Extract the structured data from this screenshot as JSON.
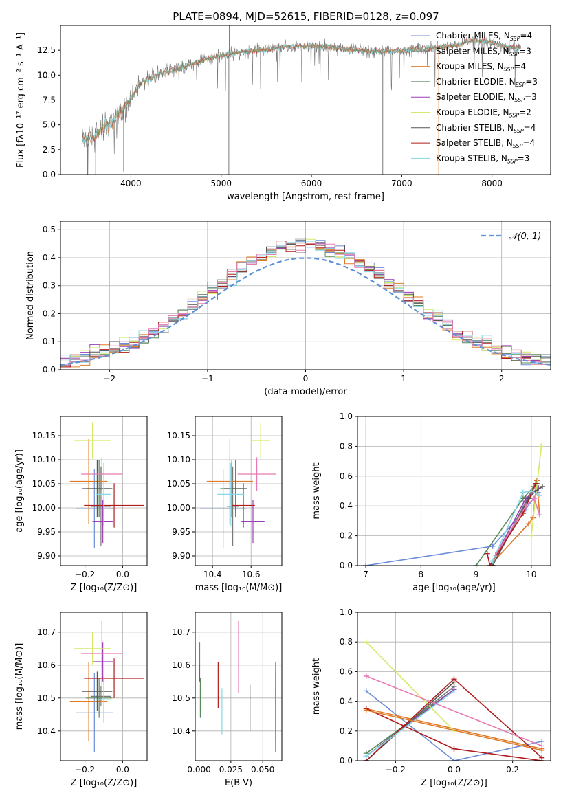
{
  "figure_title": "PLATE=0894, MJD=52615, FIBERID=0128, z=0.097",
  "colors": {
    "chabrier_miles": "#6b8cd8",
    "salpeter_miles": "#7a7a7a",
    "kroupa_miles": "#e07b27",
    "chabrier_elodie": "#5a8a5a",
    "salpeter_elodie": "#9b3fb6",
    "kroupa_elodie": "#d4e96a",
    "chabrier_stelib": "#555555",
    "salpeter_stelib": "#b01c1c",
    "kroupa_stelib": "#86d9e6",
    "pink": "#e57bb2",
    "normal": "#5b8fd6"
  },
  "chart_data": [
    {
      "id": "spectrum",
      "type": "line",
      "xlabel": "wavelength [Angstrom, rest frame]",
      "ylabel": "Flux [fλ10⁻¹⁷ erg cm⁻² s⁻¹ A⁻¹]",
      "xlim": [
        3220,
        8650
      ],
      "ylim": [
        0,
        15
      ],
      "xticks": [
        4000,
        5000,
        6000,
        7000,
        8000
      ],
      "yticks": [
        "0.0",
        "2.5",
        "5.0",
        "7.5",
        "10.0",
        "12.5"
      ],
      "legend_position": "right",
      "legend": [
        {
          "label": "Chabrier MILES, N",
          "sub": "SSP",
          "suffix": "=4",
          "color": "chabrier_miles"
        },
        {
          "label": "Salpeter MILES, N",
          "sub": "SSP",
          "suffix": "=3",
          "color": "salpeter_miles"
        },
        {
          "label": "Kroupa MILES, N",
          "sub": "SSP",
          "suffix": "=4",
          "color": "kroupa_miles"
        },
        {
          "label": "Chabrier ELODIE, N",
          "sub": "SSP",
          "suffix": "=3",
          "color": "chabrier_elodie"
        },
        {
          "label": "Salpeter ELODIE, N",
          "sub": "SSP",
          "suffix": "=3",
          "color": "salpeter_elodie"
        },
        {
          "label": "Kroupa ELODIE, N",
          "sub": "SSP",
          "suffix": "=2",
          "color": "kroupa_elodie"
        },
        {
          "label": "Chabrier STELIB, N",
          "sub": "SSP",
          "suffix": "=4",
          "color": "chabrier_stelib"
        },
        {
          "label": "Salpeter STELIB, N",
          "sub": "SSP",
          "suffix": "=4",
          "color": "salpeter_stelib"
        },
        {
          "label": "Kroupa STELIB, N",
          "sub": "SSP",
          "suffix": "=3",
          "color": "kroupa_stelib"
        }
      ],
      "continuum_x": [
        3460,
        3600,
        3700,
        3800,
        3950,
        4100,
        4300,
        4500,
        4700,
        4900,
        5200,
        5500,
        5800,
        6100,
        6400,
        6700,
        7000,
        7300,
        7600,
        7800,
        8000,
        8200,
        8320
      ],
      "continuum_y": [
        3.6,
        3.8,
        4.8,
        5.3,
        7.0,
        9.1,
        10.1,
        10.6,
        11.2,
        11.8,
        12.3,
        12.6,
        12.9,
        12.9,
        12.6,
        12.4,
        12.5,
        12.7,
        13.0,
        13.5,
        13.3,
        12.8,
        12.7
      ],
      "spikes": [
        {
          "x": 3520,
          "y": 0.0
        },
        {
          "x": 3610,
          "y": 0.0
        },
        {
          "x": 3920,
          "y": 0.3
        },
        {
          "x": 5085,
          "y": 0.0
        },
        {
          "x": 5090,
          "y": 15.0
        },
        {
          "x": 6790,
          "y": 0.0
        },
        {
          "x": 7410,
          "y": 0.0
        }
      ]
    },
    {
      "id": "residuals",
      "type": "line",
      "xlabel": "(data-model)/error",
      "ylabel": "Normed distribution",
      "xlim": [
        -2.5,
        2.5
      ],
      "ylim": [
        0,
        0.53
      ],
      "xticks": [
        "−2",
        "−1",
        "0",
        "1",
        "2"
      ],
      "yticks": [
        "0.0",
        "0.1",
        "0.2",
        "0.3",
        "0.4",
        "0.5"
      ],
      "legend_position": "top-right",
      "series": [
        {
          "name": "𝒩(0, 1)",
          "color": "normal",
          "function": "gaussian",
          "mu": 0,
          "sigma": 1
        }
      ],
      "bin_width": 0.1
    },
    {
      "id": "z-age",
      "type": "scatter",
      "xlabel": "Z [log₁₀(Z/Z⊙)]",
      "ylabel": "age  [log₁₀(age/yr)]",
      "xlim": [
        -0.33,
        0.13
      ],
      "ylim": [
        9.88,
        10.19
      ],
      "xticks": [
        "−0.2",
        "0.0"
      ],
      "yticks": [
        "9.90",
        "9.95",
        "10.00",
        "10.05",
        "10.10",
        "10.15"
      ],
      "points": [
        {
          "x": -0.15,
          "y": 9.998,
          "xerr": 0.1,
          "yerr": 0.082,
          "color": "chabrier_miles"
        },
        {
          "x": -0.115,
          "y": 10.003,
          "xerr": 0.055,
          "yerr": 0.083,
          "color": "salpeter_miles"
        },
        {
          "x": -0.18,
          "y": 10.055,
          "xerr": 0.1,
          "yerr": 0.088,
          "color": "kroupa_miles"
        },
        {
          "x": -0.125,
          "y": 10.04,
          "xerr": 0.07,
          "yerr": 0.06,
          "color": "chabrier_elodie"
        },
        {
          "x": -0.105,
          "y": 9.972,
          "xerr": 0.055,
          "yerr": 0.045,
          "color": "salpeter_elodie"
        },
        {
          "x": -0.16,
          "y": 10.14,
          "xerr": 0.1,
          "yerr": 0.038,
          "color": "kroupa_elodie"
        },
        {
          "x": -0.135,
          "y": 10.04,
          "xerr": 0.08,
          "yerr": 0.06,
          "color": "chabrier_stelib"
        },
        {
          "x": -0.045,
          "y": 10.005,
          "xerr": 0.16,
          "yerr": 0.046,
          "color": "salpeter_stelib"
        },
        {
          "x": -0.1,
          "y": 10.028,
          "xerr": 0.04,
          "yerr": 0.065,
          "color": "kroupa_stelib"
        },
        {
          "x": -0.11,
          "y": 10.07,
          "xerr": 0.11,
          "yerr": 0.035,
          "color": "pink"
        }
      ]
    },
    {
      "id": "mass-age",
      "type": "scatter",
      "xlabel": "mass [log₁₀(M/M⊙)]",
      "ylabel": "",
      "xlim": [
        10.31,
        10.76
      ],
      "ylim": [
        9.88,
        10.19
      ],
      "xticks": [
        "10.4",
        "10.6"
      ],
      "yticks": [
        "9.90",
        "9.95",
        "10.00",
        "10.05",
        "10.10",
        "10.15"
      ],
      "points": [
        {
          "x": 10.455,
          "y": 9.998,
          "xerr": 0.12,
          "yerr": 0.082,
          "color": "chabrier_miles"
        },
        {
          "x": 10.505,
          "y": 10.003,
          "xerr": 0.03,
          "yerr": 0.083,
          "color": "salpeter_miles"
        },
        {
          "x": 10.49,
          "y": 10.055,
          "xerr": 0.12,
          "yerr": 0.088,
          "color": "kroupa_miles"
        },
        {
          "x": 10.5,
          "y": 10.04,
          "xerr": 0.06,
          "yerr": 0.06,
          "color": "chabrier_elodie"
        },
        {
          "x": 10.61,
          "y": 9.972,
          "xerr": 0.06,
          "yerr": 0.045,
          "color": "salpeter_elodie"
        },
        {
          "x": 10.65,
          "y": 10.14,
          "xerr": 0.05,
          "yerr": 0.038,
          "color": "kroupa_elodie"
        },
        {
          "x": 10.52,
          "y": 10.04,
          "xerr": 0.06,
          "yerr": 0.06,
          "color": "chabrier_stelib"
        },
        {
          "x": 10.56,
          "y": 10.005,
          "xerr": 0.06,
          "yerr": 0.046,
          "color": "salpeter_stelib"
        },
        {
          "x": 10.495,
          "y": 10.028,
          "xerr": 0.07,
          "yerr": 0.065,
          "color": "kroupa_stelib"
        },
        {
          "x": 10.63,
          "y": 10.07,
          "xerr": 0.1,
          "yerr": 0.035,
          "color": "pink"
        }
      ]
    },
    {
      "id": "age-weight",
      "type": "line",
      "xlabel": "age  [log₁₀(age/yr)]",
      "ylabel": "mass weight",
      "xlim": [
        6.85,
        10.35
      ],
      "ylim": [
        0,
        1
      ],
      "xticks": [
        "7",
        "8",
        "9",
        "10"
      ],
      "yticks": [
        "0.0",
        "0.2",
        "0.4",
        "0.6",
        "0.8",
        "1.0"
      ],
      "series": [
        {
          "color": "chabrier_miles",
          "x": [
            7.0,
            9.3,
            9.9,
            10.12
          ],
          "y": [
            0.0,
            0.13,
            0.38,
            0.49
          ]
        },
        {
          "color": "salpeter_miles",
          "x": [
            9.3,
            9.9,
            10.05,
            10.13
          ],
          "y": [
            0.0,
            0.43,
            0.53,
            0.52
          ]
        },
        {
          "color": "kroupa_miles",
          "x": [
            9.25,
            9.95,
            10.03,
            10.1,
            10.15
          ],
          "y": [
            0.0,
            0.28,
            0.32,
            0.57,
            0.34
          ]
        },
        {
          "color": "chabrier_elodie",
          "x": [
            9.0,
            9.85,
            10.1
          ],
          "y": [
            0.0,
            0.45,
            0.55
          ]
        },
        {
          "color": "salpeter_elodie",
          "x": [
            9.3,
            9.9,
            10.12
          ],
          "y": [
            0.03,
            0.45,
            0.52
          ]
        },
        {
          "color": "kroupa_elodie",
          "x": [
            10.0,
            10.18
          ],
          "y": [
            0.2,
            0.8
          ]
        },
        {
          "color": "chabrier_stelib",
          "x": [
            9.3,
            9.95,
            10.08,
            10.2
          ],
          "y": [
            0.0,
            0.45,
            0.5,
            0.53
          ]
        },
        {
          "color": "salpeter_stelib",
          "x": [
            9.2,
            9.25,
            9.85,
            10.08
          ],
          "y": [
            0.08,
            0.0,
            0.35,
            0.55
          ]
        },
        {
          "color": "kroupa_stelib",
          "x": [
            9.3,
            9.85,
            10.0,
            10.15
          ],
          "y": [
            0.03,
            0.49,
            0.5,
            0.47
          ]
        },
        {
          "color": "pink",
          "x": [
            9.35,
            9.9,
            10.05,
            10.15
          ],
          "y": [
            0.07,
            0.4,
            0.45,
            0.34
          ]
        }
      ]
    },
    {
      "id": "z-mass",
      "type": "scatter",
      "xlabel": "Z [log₁₀(Z/Z⊙)]",
      "ylabel": "mass [log₁₀(M/M⊙)]",
      "xlim": [
        -0.33,
        0.13
      ],
      "ylim": [
        10.31,
        10.76
      ],
      "xticks": [
        "−0.2",
        "0.0"
      ],
      "yticks": [
        "10.4",
        "10.5",
        "10.6",
        "10.7"
      ],
      "points": [
        {
          "x": -0.15,
          "y": 10.455,
          "xerr": 0.1,
          "yerr": 0.12,
          "color": "chabrier_miles"
        },
        {
          "x": -0.115,
          "y": 10.505,
          "xerr": 0.055,
          "yerr": 0.03,
          "color": "salpeter_miles"
        },
        {
          "x": -0.18,
          "y": 10.49,
          "xerr": 0.1,
          "yerr": 0.12,
          "color": "kroupa_miles"
        },
        {
          "x": -0.125,
          "y": 10.5,
          "xerr": 0.07,
          "yerr": 0.06,
          "color": "chabrier_elodie"
        },
        {
          "x": -0.105,
          "y": 10.61,
          "xerr": 0.055,
          "yerr": 0.06,
          "color": "salpeter_elodie"
        },
        {
          "x": -0.16,
          "y": 10.65,
          "xerr": 0.1,
          "yerr": 0.05,
          "color": "kroupa_elodie"
        },
        {
          "x": -0.135,
          "y": 10.52,
          "xerr": 0.08,
          "yerr": 0.06,
          "color": "chabrier_stelib"
        },
        {
          "x": -0.045,
          "y": 10.56,
          "xerr": 0.16,
          "yerr": 0.06,
          "color": "salpeter_stelib"
        },
        {
          "x": -0.1,
          "y": 10.495,
          "xerr": 0.04,
          "yerr": 0.07,
          "color": "kroupa_stelib"
        },
        {
          "x": -0.11,
          "y": 10.635,
          "xerr": 0.11,
          "yerr": 0.1,
          "color": "pink"
        }
      ]
    },
    {
      "id": "ebv-mass",
      "type": "scatter",
      "xlabel": "E(B-V)",
      "ylabel": "",
      "xlim": [
        -0.003,
        0.065
      ],
      "ylim": [
        10.31,
        10.76
      ],
      "xticks": [
        "0.000",
        "0.025",
        "0.050"
      ],
      "yticks": [
        "10.4",
        "10.5",
        "10.6",
        "10.7"
      ],
      "points": [
        {
          "x": 0.06,
          "y": 10.455,
          "xerr": 0,
          "yerr": 0.12,
          "color": "chabrier_miles"
        },
        {
          "x": 0.06,
          "y": 10.505,
          "xerr": 0,
          "yerr": 0.03,
          "color": "salpeter_miles"
        },
        {
          "x": 0.06,
          "y": 10.49,
          "xerr": 0,
          "yerr": 0.12,
          "color": "kroupa_miles"
        },
        {
          "x": 0.001,
          "y": 10.5,
          "xerr": 0,
          "yerr": 0.06,
          "color": "chabrier_elodie"
        },
        {
          "x": 0.0005,
          "y": 10.61,
          "xerr": 0,
          "yerr": 0.06,
          "color": "salpeter_elodie"
        },
        {
          "x": 0.0,
          "y": 10.65,
          "xerr": 0,
          "yerr": 0.05,
          "color": "kroupa_elodie"
        },
        {
          "x": 0.04,
          "y": 10.47,
          "xerr": 0,
          "yerr": 0.07,
          "color": "chabrier_stelib"
        },
        {
          "x": 0.015,
          "y": 10.54,
          "xerr": 0,
          "yerr": 0.07,
          "color": "salpeter_stelib"
        },
        {
          "x": 0.018,
          "y": 10.46,
          "xerr": 0,
          "yerr": 0.07,
          "color": "kroupa_stelib"
        },
        {
          "x": 0.031,
          "y": 10.625,
          "xerr": 0,
          "yerr": 0.11,
          "color": "pink"
        }
      ]
    },
    {
      "id": "z-weight",
      "type": "line",
      "xlabel": "Z [log₁₀(Z/Z⊙)]",
      "ylabel": "mass weight",
      "xlim": [
        -0.33,
        0.33
      ],
      "ylim": [
        0,
        1
      ],
      "xticks": [
        "−0.2",
        "0.0",
        "0.2"
      ],
      "yticks": [
        "0.0",
        "0.2",
        "0.4",
        "0.6",
        "0.8",
        "1.0"
      ],
      "series": [
        {
          "color": "chabrier_miles",
          "x": [
            -0.3,
            0.0,
            0.3
          ],
          "y": [
            0.47,
            0.0,
            0.13
          ]
        },
        {
          "color": "salpeter_miles",
          "x": [
            -0.3,
            0.0
          ],
          "y": [
            0.03,
            0.5
          ]
        },
        {
          "color": "kroupa_miles",
          "x": [
            -0.3,
            0.3
          ],
          "y": [
            0.35,
            0.08
          ]
        },
        {
          "color": "chabrier_elodie",
          "x": [
            -0.3,
            0.0
          ],
          "y": [
            0.05,
            0.48
          ]
        },
        {
          "color": "salpeter_elodie",
          "x": [
            -0.3,
            0.0
          ],
          "y": [
            0.03,
            0.48
          ]
        },
        {
          "color": "kroupa_elodie",
          "x": [
            -0.3,
            0.0
          ],
          "y": [
            0.8,
            0.2
          ]
        },
        {
          "color": "chabrier_stelib",
          "x": [
            -0.3,
            0.0
          ],
          "y": [
            0.0,
            0.53
          ]
        },
        {
          "color": "salpeter_stelib",
          "x": [
            -0.3,
            0.0,
            0.3
          ],
          "y": [
            0.35,
            0.08,
            0.0
          ]
        },
        {
          "color": "salpeter_stelib",
          "x": [
            -0.3,
            0.0,
            0.3
          ],
          "y": [
            0.0,
            0.55,
            0.02
          ]
        },
        {
          "color": "kroupa_stelib",
          "x": [
            -0.3,
            0.0
          ],
          "y": [
            0.03,
            0.47
          ]
        },
        {
          "color": "pink",
          "x": [
            -0.3,
            0.3
          ],
          "y": [
            0.57,
            0.1
          ]
        },
        {
          "color": "kroupa_miles",
          "x": [
            -0.3,
            0.3
          ],
          "y": [
            0.34,
            0.07
          ]
        }
      ]
    }
  ]
}
